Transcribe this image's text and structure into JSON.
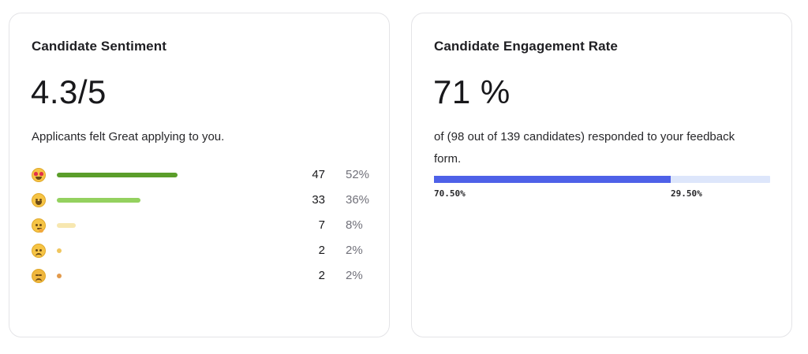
{
  "sentiment": {
    "title": "Candidate Sentiment",
    "score": "4.3/5",
    "subtitle": "Applicants felt Great applying to you.",
    "ratings": [
      {
        "icon": "heart-eyes-emoji-icon",
        "count": "47",
        "percent": "52%",
        "fraction": 0.52,
        "color": "#5b9e2a"
      },
      {
        "icon": "grinning-face-emoji-icon",
        "count": "33",
        "percent": "36%",
        "fraction": 0.36,
        "color": "#94d15f"
      },
      {
        "icon": "thinking-face-emoji-icon",
        "count": "7",
        "percent": "8%",
        "fraction": 0.08,
        "color": "#f7e7b0"
      },
      {
        "icon": "slightly-frowning-face-emoji-icon",
        "count": "2",
        "percent": "2%",
        "fraction": 0.02,
        "color": "#f0c65e"
      },
      {
        "icon": "persevering-face-emoji-icon",
        "count": "2",
        "percent": "2%",
        "fraction": 0.02,
        "color": "#e29a4c"
      }
    ]
  },
  "engagement": {
    "title": "Candidate Engagement Rate",
    "rate": "71 %",
    "subtitle": "of (98 out of 139 candidates) responded to your feedback form.",
    "responded_label": "70.50%",
    "not_responded_label": "29.50%",
    "responded_fraction": 0.705,
    "responded_color": "#4e61e8",
    "remaining_color": "#dde6fb"
  }
}
